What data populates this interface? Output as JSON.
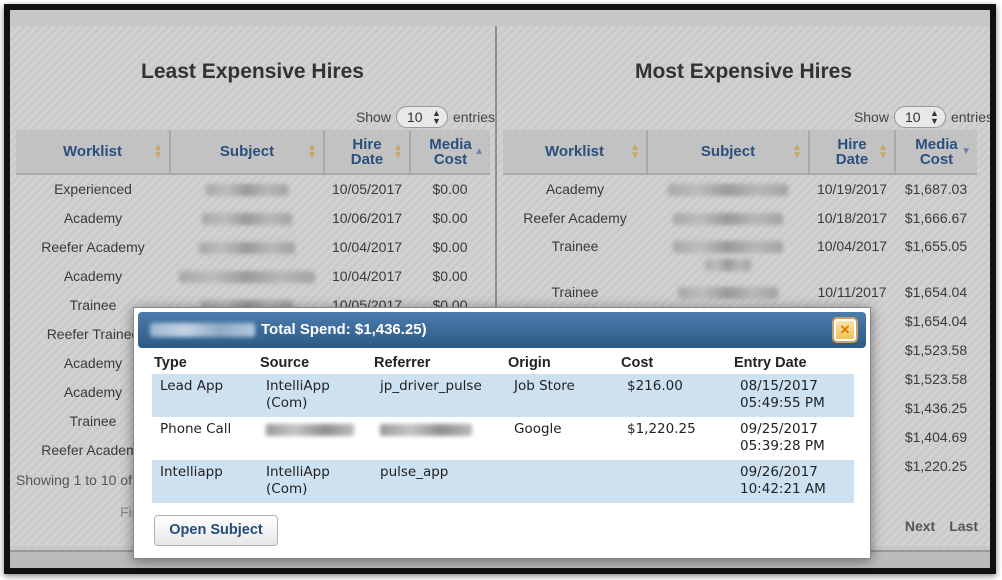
{
  "left_panel": {
    "title": "Least Expensive Hires",
    "show_label": "Show",
    "entries_value": "10",
    "entries_label": "entries",
    "columns": [
      "Worklist",
      "Subject",
      "Hire\nDate",
      "Media\nCost"
    ],
    "rows": [
      {
        "worklist": "Experienced",
        "hire_date": "10/05/2017",
        "media_cost": "$0.00"
      },
      {
        "worklist": "Academy",
        "hire_date": "10/06/2017",
        "media_cost": "$0.00"
      },
      {
        "worklist": "Reefer Academy",
        "hire_date": "10/04/2017",
        "media_cost": "$0.00"
      },
      {
        "worklist": "Academy",
        "hire_date": "10/04/2017",
        "media_cost": "$0.00"
      },
      {
        "worklist": "Trainee",
        "hire_date": "10/05/2017",
        "media_cost": "$0.00"
      },
      {
        "worklist": "Reefer Trainee",
        "hire_date": "",
        "media_cost": ""
      },
      {
        "worklist": "Academy",
        "hire_date": "",
        "media_cost": ""
      },
      {
        "worklist": "Academy",
        "hire_date": "",
        "media_cost": ""
      },
      {
        "worklist": "Trainee",
        "hire_date": "",
        "media_cost": ""
      },
      {
        "worklist": "Reefer Academy",
        "hire_date": "",
        "media_cost": ""
      }
    ],
    "showing_text": "Showing 1 to 10 of",
    "first_label": "First"
  },
  "right_panel": {
    "title": "Most Expensive Hires",
    "show_label": "Show",
    "entries_value": "10",
    "entries_label": "entries",
    "columns": [
      "Worklist",
      "Subject",
      "Hire\nDate",
      "Media\nCost"
    ],
    "rows": [
      {
        "worklist": "Academy",
        "hire_date": "10/19/2017",
        "media_cost": "$1,687.03"
      },
      {
        "worklist": "Reefer Academy",
        "hire_date": "10/18/2017",
        "media_cost": "$1,666.67"
      },
      {
        "worklist": "Trainee",
        "hire_date": "10/04/2017",
        "media_cost": "$1,655.05"
      },
      {
        "worklist": "Trainee",
        "hire_date": "10/11/2017",
        "media_cost": "$1,654.04"
      },
      {
        "worklist": "",
        "hire_date": "",
        "media_cost": "$1,654.04"
      },
      {
        "worklist": "",
        "hire_date": "",
        "media_cost": "$1,523.58"
      },
      {
        "worklist": "",
        "hire_date": "",
        "media_cost": "$1,523.58"
      },
      {
        "worklist": "",
        "hire_date": "",
        "media_cost": "$1,436.25"
      },
      {
        "worklist": "",
        "hire_date": "",
        "media_cost": "$1,404.69"
      },
      {
        "worklist": "",
        "hire_date": "",
        "media_cost": "$1,220.25"
      }
    ],
    "pager": {
      "next": "Next",
      "last": "Last"
    }
  },
  "modal": {
    "title_suffix": "Total Spend: $1,436.25)",
    "close_label": "×",
    "columns": [
      "Type",
      "Source",
      "Referrer",
      "Origin",
      "Cost",
      "Entry Date"
    ],
    "rows": [
      {
        "type": "Lead App",
        "source": "IntelliApp\n(Com)",
        "referrer": "jp_driver_pulse",
        "origin": "Job Store",
        "cost": "$216.00",
        "entry_date": "08/15/2017\n05:49:55 PM"
      },
      {
        "type": "Phone Call",
        "source": "",
        "referrer": "",
        "origin": "Google",
        "cost": "$1,220.25",
        "entry_date": "09/25/2017\n05:39:28 PM"
      },
      {
        "type": "Intelliapp",
        "source": "IntelliApp\n(Com)",
        "referrer": "pulse_app",
        "origin": "",
        "cost": "",
        "entry_date": "09/26/2017\n10:42:21 AM"
      }
    ],
    "open_subject_label": "Open Subject"
  }
}
